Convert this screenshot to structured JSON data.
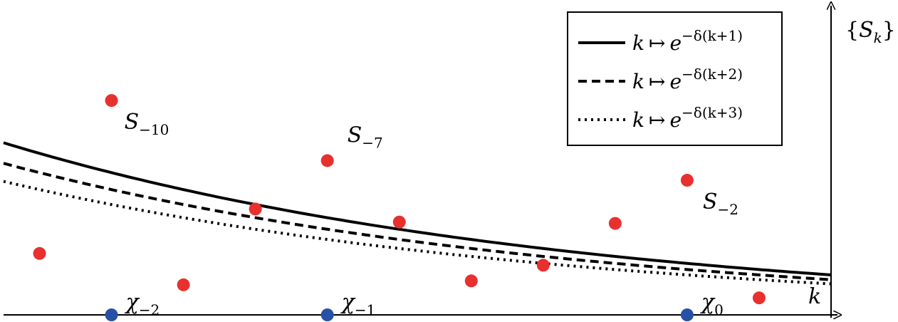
{
  "chart_data": {
    "type": "scatter",
    "xlabel": "k",
    "ylabel": "{S_k}",
    "ylabel_parts": {
      "open": "{",
      "base": "S",
      "sub": "k",
      "close": "}"
    },
    "points": [
      {
        "x": -11,
        "y": 0.235
      },
      {
        "x": -10,
        "y": 0.82
      },
      {
        "x": -9,
        "y": 0.115
      },
      {
        "x": -8,
        "y": 0.405
      },
      {
        "x": -7,
        "y": 0.59
      },
      {
        "x": -6,
        "y": 0.355
      },
      {
        "x": -5,
        "y": 0.13
      },
      {
        "x": -4,
        "y": 0.19
      },
      {
        "x": -3,
        "y": 0.35
      },
      {
        "x": -2,
        "y": 0.515
      },
      {
        "x": -1,
        "y": 0.065
      }
    ],
    "point_color": "#e8302f",
    "point_labels": [
      {
        "base": "S",
        "sub": "−10",
        "at_x": -10
      },
      {
        "base": "S",
        "sub": "−7",
        "at_x": -7
      },
      {
        "base": "S",
        "sub": "−2",
        "at_x": -2
      }
    ],
    "axis_markers": {
      "color": "#2651a6",
      "items": [
        {
          "base": "χ",
          "sub": "−2",
          "x": -10
        },
        {
          "base": "χ",
          "sub": "−1",
          "x": -7
        },
        {
          "base": "χ",
          "sub": "0",
          "x": -2
        }
      ]
    },
    "curves": [
      {
        "name": "k ↦ e^{−δ(k+1)}",
        "shift": 1,
        "style": "solid"
      },
      {
        "name": "k ↦ e^{−δ(k+2)}",
        "shift": 2,
        "style": "dashed"
      },
      {
        "name": "k ↦ e^{−δ(k+3)}",
        "shift": 3,
        "style": "dotted"
      }
    ],
    "legend": {
      "placement": "top-right",
      "entries": [
        {
          "k": "k",
          "arrow": "↦",
          "e": "e",
          "sup": "−δ(k+1)",
          "style": "solid"
        },
        {
          "k": "k",
          "arrow": "↦",
          "e": "e",
          "sup": "−δ(k+2)",
          "style": "dashed"
        },
        {
          "k": "k",
          "arrow": "↦",
          "e": "e",
          "sup": "−δ(k+3)",
          "style": "dotted"
        }
      ]
    },
    "xlim": [
      -11.5,
      0
    ],
    "ylim": [
      0,
      1.15
    ],
    "grid": false
  }
}
